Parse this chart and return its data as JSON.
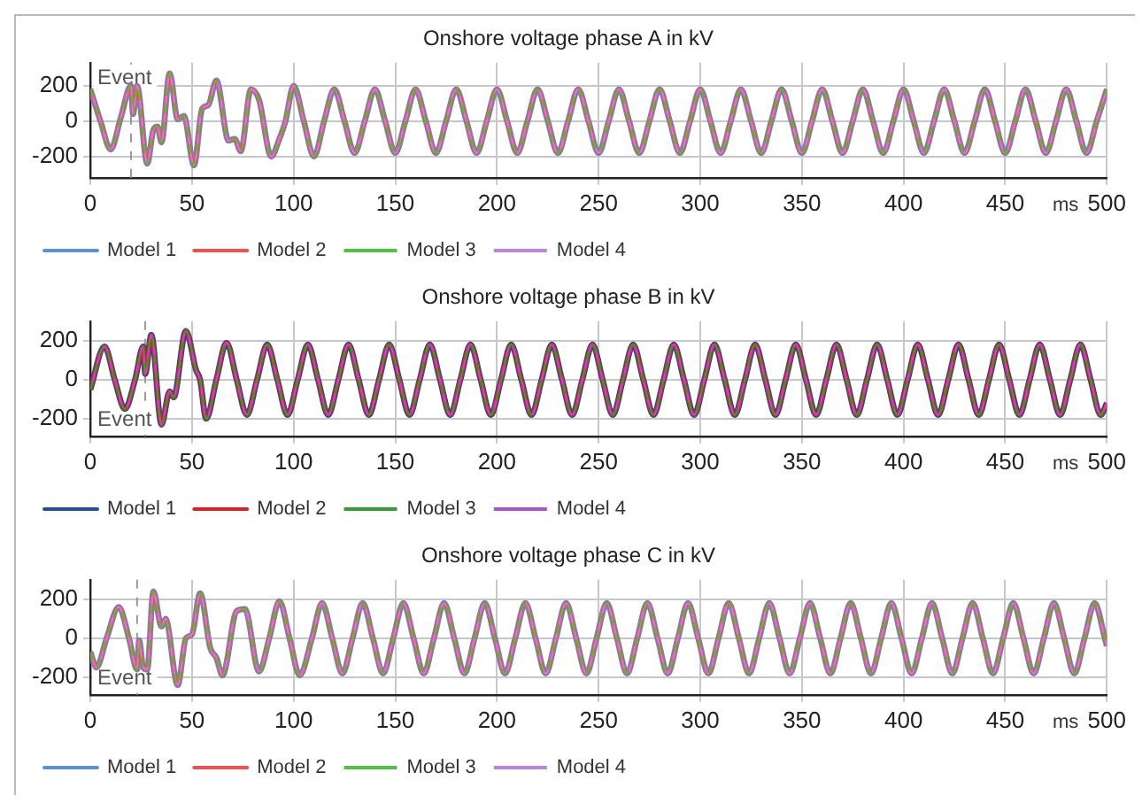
{
  "chart_data": [
    {
      "type": "line",
      "title": "Onshore voltage phase A in kV",
      "xlabel": "ms",
      "x": [
        0,
        5,
        10,
        15,
        20,
        21,
        23,
        28,
        31,
        33,
        35,
        39,
        43,
        46,
        51,
        55,
        58,
        62,
        68,
        71,
        74,
        79,
        83,
        89,
        93,
        96,
        100,
        105,
        110,
        115,
        120,
        125,
        130,
        135,
        140,
        145,
        150,
        155,
        160,
        165,
        170,
        175,
        180,
        185,
        190,
        195,
        200,
        205,
        210,
        215,
        220,
        225,
        230,
        235,
        240,
        245,
        250,
        255,
        260,
        265,
        270,
        275,
        280,
        285,
        290,
        295,
        300,
        305,
        310,
        315,
        320,
        325,
        330,
        335,
        340,
        345,
        350,
        355,
        360,
        365,
        370,
        375,
        380,
        385,
        390,
        395,
        400,
        405,
        410,
        415,
        420,
        425,
        430,
        435,
        440,
        445,
        450,
        455,
        460,
        465,
        470,
        475,
        480,
        485,
        490,
        495,
        500
      ],
      "series": [
        {
          "name": "Model 1",
          "color": "#5b8fd6",
          "line_style": "solid",
          "values": [
            180,
            0,
            -160,
            20,
            200,
            40,
            200,
            -240,
            -50,
            -30,
            -120,
            270,
            10,
            30,
            -250,
            70,
            90,
            230,
            -110,
            -100,
            -170,
            180,
            120,
            -200,
            -100,
            0,
            200,
            0,
            -200,
            0,
            180,
            0,
            -180,
            0,
            180,
            0,
            -180,
            0,
            180,
            0,
            -180,
            0,
            180,
            0,
            -180,
            0,
            180,
            0,
            -180,
            0,
            180,
            0,
            -180,
            0,
            180,
            0,
            -180,
            0,
            180,
            0,
            -180,
            0,
            180,
            0,
            -180,
            0,
            180,
            0,
            -180,
            0,
            180,
            0,
            -180,
            0,
            180,
            0,
            -180,
            0,
            180,
            0,
            -180,
            0,
            180,
            0,
            -180,
            0,
            180,
            0,
            -180,
            0,
            180,
            0,
            -180,
            0,
            180,
            0,
            -180,
            0,
            180,
            0,
            -180,
            0,
            180,
            0,
            -180,
            0,
            180
          ]
        },
        {
          "name": "Model 2",
          "color": "#f05050",
          "line_style": "solid",
          "values": [
            180,
            0,
            -160,
            20,
            200,
            40,
            200,
            -240,
            -50,
            -30,
            -120,
            270,
            10,
            30,
            -250,
            70,
            90,
            230,
            -110,
            -100,
            -170,
            180,
            120,
            -200,
            -100,
            0,
            200,
            0,
            -200,
            0,
            180,
            0,
            -180,
            0,
            180,
            0,
            -180,
            0,
            180,
            0,
            -180,
            0,
            180,
            0,
            -180,
            0,
            180,
            0,
            -180,
            0,
            180,
            0,
            -180,
            0,
            180,
            0,
            -180,
            0,
            180,
            0,
            -180,
            0,
            180,
            0,
            -180,
            0,
            180,
            0,
            -180,
            0,
            180,
            0,
            -180,
            0,
            180,
            0,
            -180,
            0,
            180,
            0,
            -180,
            0,
            180,
            0,
            -180,
            0,
            180,
            0,
            -180,
            0,
            180,
            0,
            -180,
            0,
            180,
            0,
            -180,
            0,
            180,
            0,
            -180,
            0,
            180,
            0,
            -180,
            0,
            180
          ]
        },
        {
          "name": "Model 3",
          "color": "#50c040",
          "line_style": "dashed",
          "values": [
            180,
            0,
            -160,
            20,
            200,
            40,
            200,
            -240,
            -50,
            -30,
            -120,
            270,
            10,
            30,
            -250,
            70,
            90,
            230,
            -110,
            -100,
            -170,
            180,
            120,
            -200,
            -100,
            0,
            200,
            0,
            -200,
            0,
            180,
            0,
            -180,
            0,
            180,
            0,
            -180,
            0,
            180,
            0,
            -180,
            0,
            180,
            0,
            -180,
            0,
            180,
            0,
            -180,
            0,
            180,
            0,
            -180,
            0,
            180,
            0,
            -180,
            0,
            180,
            0,
            -180,
            0,
            180,
            0,
            -180,
            0,
            180,
            0,
            -180,
            0,
            180,
            0,
            -180,
            0,
            180,
            0,
            -180,
            0,
            180,
            0,
            -180,
            0,
            180,
            0,
            -180,
            0,
            180,
            0,
            -180,
            0,
            180,
            0,
            -180,
            0,
            180,
            0,
            -180,
            0,
            180,
            0,
            -180,
            0,
            180,
            0,
            -180,
            0,
            180
          ]
        },
        {
          "name": "Model 4",
          "color": "#c080e0",
          "line_style": "dashed",
          "values": [
            180,
            0,
            -160,
            20,
            200,
            40,
            200,
            -240,
            -50,
            -30,
            -120,
            270,
            10,
            30,
            -250,
            70,
            90,
            230,
            -110,
            -100,
            -170,
            180,
            120,
            -200,
            -100,
            0,
            200,
            0,
            -200,
            0,
            180,
            0,
            -180,
            0,
            180,
            0,
            -180,
            0,
            180,
            0,
            -180,
            0,
            180,
            0,
            -180,
            0,
            180,
            0,
            -180,
            0,
            180,
            0,
            -180,
            0,
            180,
            0,
            -180,
            0,
            180,
            0,
            -180,
            0,
            180,
            0,
            -180,
            0,
            180,
            0,
            -180,
            0,
            180,
            0,
            -180,
            0,
            180,
            0,
            -180,
            0,
            180,
            0,
            -180,
            0,
            180,
            0,
            -180,
            0,
            180,
            0,
            -180,
            0,
            180,
            0,
            -180,
            0,
            180,
            0,
            -180,
            0,
            180,
            0,
            -180,
            0,
            180,
            0,
            -180,
            0,
            180
          ]
        }
      ],
      "xlim": [
        0,
        500
      ],
      "xticks": [
        0,
        50,
        100,
        150,
        200,
        250,
        300,
        350,
        400,
        450,
        500
      ],
      "ylim": [
        -320,
        330
      ],
      "yticks": [
        -200,
        0,
        200
      ],
      "ref_lines": [
        {
          "axis": "x",
          "value": 20,
          "label": "Event",
          "color": "#999999",
          "line_style": "dashed"
        }
      ],
      "grid": true,
      "legend": "bottom left",
      "marker": "none"
    },
    {
      "type": "line",
      "title": "Onshore voltage phase B in kV",
      "xlabel": "ms",
      "x": [
        0,
        7,
        12,
        17,
        22,
        26,
        27,
        30,
        35,
        39,
        41,
        47,
        52,
        54,
        57,
        62,
        67,
        72,
        77,
        82,
        87,
        92,
        97,
        102,
        107,
        112,
        117,
        122,
        127,
        132,
        137,
        142,
        147,
        152,
        157,
        162,
        167,
        172,
        177,
        182,
        187,
        192,
        197,
        202,
        207,
        212,
        217,
        222,
        227,
        232,
        237,
        242,
        247,
        252,
        257,
        262,
        267,
        272,
        277,
        282,
        287,
        292,
        297,
        302,
        307,
        312,
        317,
        322,
        327,
        332,
        337,
        342,
        347,
        352,
        357,
        362,
        367,
        372,
        377,
        382,
        387,
        392,
        397,
        402,
        407,
        412,
        417,
        422,
        427,
        432,
        437,
        442,
        447,
        452,
        457,
        462,
        467,
        472,
        477,
        482,
        487,
        492,
        497,
        500
      ],
      "series": [
        {
          "name": "Model 1",
          "color": "#1f4e9c",
          "line_style": "solid",
          "values": [
            -50,
            170,
            0,
            -150,
            0,
            170,
            30,
            230,
            -230,
            -60,
            -90,
            250,
            50,
            0,
            -200,
            0,
            190,
            0,
            -180,
            0,
            180,
            0,
            -180,
            0,
            180,
            0,
            -180,
            0,
            180,
            0,
            -180,
            0,
            180,
            0,
            -180,
            0,
            180,
            0,
            -180,
            0,
            180,
            0,
            -180,
            0,
            180,
            0,
            -180,
            0,
            180,
            0,
            -180,
            0,
            180,
            0,
            -180,
            0,
            180,
            0,
            -180,
            0,
            180,
            0,
            -180,
            0,
            180,
            0,
            -180,
            0,
            180,
            0,
            -180,
            0,
            180,
            0,
            -180,
            0,
            180,
            0,
            -180,
            0,
            180,
            0,
            -180,
            0,
            180,
            0,
            -180,
            0,
            180,
            0,
            -180,
            0,
            180,
            0,
            -180,
            0,
            180,
            0,
            -180,
            0,
            180,
            0,
            -180,
            -120
          ]
        },
        {
          "name": "Model 2",
          "color": "#e02020",
          "line_style": "solid",
          "values": [
            -50,
            170,
            0,
            -150,
            0,
            170,
            30,
            230,
            -230,
            -60,
            -90,
            250,
            50,
            0,
            -200,
            0,
            190,
            0,
            -180,
            0,
            180,
            0,
            -180,
            0,
            180,
            0,
            -180,
            0,
            180,
            0,
            -180,
            0,
            180,
            0,
            -180,
            0,
            180,
            0,
            -180,
            0,
            180,
            0,
            -180,
            0,
            180,
            0,
            -180,
            0,
            180,
            0,
            -180,
            0,
            180,
            0,
            -180,
            0,
            180,
            0,
            -180,
            0,
            180,
            0,
            -180,
            0,
            180,
            0,
            -180,
            0,
            180,
            0,
            -180,
            0,
            180,
            0,
            -180,
            0,
            180,
            0,
            -180,
            0,
            180,
            0,
            -180,
            0,
            180,
            0,
            -180,
            0,
            180,
            0,
            -180,
            0,
            180,
            0,
            -180,
            0,
            180,
            0,
            -180,
            0,
            180,
            0,
            -180,
            -120
          ]
        },
        {
          "name": "Model 3",
          "color": "#30a030",
          "line_style": "dashed",
          "values": [
            -50,
            170,
            0,
            -150,
            0,
            170,
            30,
            230,
            -230,
            -60,
            -90,
            250,
            50,
            0,
            -200,
            0,
            190,
            0,
            -180,
            0,
            180,
            0,
            -180,
            0,
            180,
            0,
            -180,
            0,
            180,
            0,
            -180,
            0,
            180,
            0,
            -180,
            0,
            180,
            0,
            -180,
            0,
            180,
            0,
            -180,
            0,
            180,
            0,
            -180,
            0,
            180,
            0,
            -180,
            0,
            180,
            0,
            -180,
            0,
            180,
            0,
            -180,
            0,
            180,
            0,
            -180,
            0,
            180,
            0,
            -180,
            0,
            180,
            0,
            -180,
            0,
            180,
            0,
            -180,
            0,
            180,
            0,
            -180,
            0,
            180,
            0,
            -180,
            0,
            180,
            0,
            -180,
            0,
            180,
            0,
            -180,
            0,
            180,
            0,
            -180,
            0,
            180,
            0,
            -180,
            0,
            180,
            0,
            -180,
            -120
          ]
        },
        {
          "name": "Model 4",
          "color": "#b050d0",
          "line_style": "dashed",
          "values": [
            -50,
            170,
            0,
            -150,
            0,
            170,
            30,
            230,
            -230,
            -60,
            -90,
            250,
            50,
            0,
            -200,
            0,
            190,
            0,
            -180,
            0,
            180,
            0,
            -180,
            0,
            180,
            0,
            -180,
            0,
            180,
            0,
            -180,
            0,
            180,
            0,
            -180,
            0,
            180,
            0,
            -180,
            0,
            180,
            0,
            -180,
            0,
            180,
            0,
            -180,
            0,
            180,
            0,
            -180,
            0,
            180,
            0,
            -180,
            0,
            180,
            0,
            -180,
            0,
            180,
            0,
            -180,
            0,
            180,
            0,
            -180,
            0,
            180,
            0,
            -180,
            0,
            180,
            0,
            -180,
            0,
            180,
            0,
            -180,
            0,
            180,
            0,
            -180,
            0,
            180,
            0,
            -180,
            0,
            180,
            0,
            -180,
            0,
            180,
            0,
            -180,
            0,
            180,
            0,
            -180,
            0,
            180,
            0,
            -180,
            -120
          ]
        }
      ],
      "xlim": [
        0,
        500
      ],
      "xticks": [
        0,
        50,
        100,
        150,
        200,
        250,
        300,
        350,
        400,
        450,
        500
      ],
      "ylim": [
        -290,
        300
      ],
      "yticks": [
        -200,
        0,
        200
      ],
      "ref_lines": [
        {
          "axis": "x",
          "value": 27,
          "label": "Event",
          "color": "#999999",
          "line_style": "dashed"
        }
      ],
      "grid": true,
      "legend": "bottom left",
      "marker": "none"
    },
    {
      "type": "line",
      "title": "Onshore voltage phase C in kV",
      "xlabel": "ms",
      "x": [
        0,
        3,
        8,
        14,
        19,
        23,
        24,
        26,
        28,
        31,
        35,
        37,
        43,
        47,
        50,
        54,
        59,
        62,
        65,
        72,
        76,
        83,
        88,
        93,
        98,
        103,
        109,
        114,
        119,
        124,
        129,
        134,
        139,
        144,
        149,
        154,
        159,
        164,
        169,
        174,
        179,
        184,
        189,
        194,
        199,
        204,
        209,
        214,
        219,
        224,
        229,
        234,
        239,
        244,
        249,
        254,
        259,
        264,
        269,
        274,
        279,
        284,
        289,
        294,
        299,
        304,
        309,
        314,
        319,
        324,
        329,
        334,
        339,
        344,
        349,
        354,
        359,
        364,
        369,
        374,
        379,
        384,
        389,
        394,
        399,
        404,
        409,
        414,
        419,
        424,
        429,
        434,
        439,
        444,
        449,
        454,
        459,
        464,
        469,
        474,
        479,
        484,
        489,
        494,
        499,
        500
      ],
      "series": [
        {
          "name": "Model 1",
          "color": "#5b8fd6",
          "line_style": "solid",
          "values": [
            -70,
            -150,
            0,
            160,
            0,
            -160,
            -10,
            -150,
            -160,
            240,
            60,
            100,
            -240,
            0,
            20,
            230,
            -50,
            -100,
            -190,
            140,
            150,
            -170,
            0,
            190,
            0,
            -190,
            0,
            180,
            0,
            -180,
            0,
            180,
            0,
            -180,
            0,
            180,
            0,
            -180,
            0,
            180,
            0,
            -180,
            0,
            180,
            0,
            -180,
            0,
            180,
            0,
            -180,
            0,
            180,
            0,
            -180,
            0,
            180,
            0,
            -180,
            0,
            180,
            0,
            -180,
            0,
            180,
            0,
            -180,
            0,
            180,
            0,
            -180,
            0,
            180,
            0,
            -180,
            0,
            180,
            0,
            -180,
            0,
            180,
            0,
            -180,
            0,
            180,
            0,
            -180,
            0,
            180,
            0,
            -180,
            0,
            180,
            0,
            -180,
            0,
            180,
            0,
            -180,
            0,
            180,
            0,
            -180,
            0,
            180,
            0,
            -40
          ]
        },
        {
          "name": "Model 2",
          "color": "#f05050",
          "line_style": "solid",
          "values": [
            -70,
            -150,
            0,
            160,
            0,
            -160,
            -10,
            -150,
            -160,
            240,
            60,
            100,
            -240,
            0,
            20,
            230,
            -50,
            -100,
            -190,
            140,
            150,
            -170,
            0,
            190,
            0,
            -190,
            0,
            180,
            0,
            -180,
            0,
            180,
            0,
            -180,
            0,
            180,
            0,
            -180,
            0,
            180,
            0,
            -180,
            0,
            180,
            0,
            -180,
            0,
            180,
            0,
            -180,
            0,
            180,
            0,
            -180,
            0,
            180,
            0,
            -180,
            0,
            180,
            0,
            -180,
            0,
            180,
            0,
            -180,
            0,
            180,
            0,
            -180,
            0,
            180,
            0,
            -180,
            0,
            180,
            0,
            -180,
            0,
            180,
            0,
            -180,
            0,
            180,
            0,
            -180,
            0,
            180,
            0,
            -180,
            0,
            180,
            0,
            -180,
            0,
            180,
            0,
            -180,
            0,
            180,
            0,
            -180,
            0,
            180,
            0,
            -40
          ]
        },
        {
          "name": "Model 3",
          "color": "#50c040",
          "line_style": "dashed",
          "values": [
            -70,
            -150,
            0,
            160,
            0,
            -160,
            -10,
            -150,
            -160,
            240,
            60,
            100,
            -240,
            0,
            20,
            230,
            -50,
            -100,
            -190,
            140,
            150,
            -170,
            0,
            190,
            0,
            -190,
            0,
            180,
            0,
            -180,
            0,
            180,
            0,
            -180,
            0,
            180,
            0,
            -180,
            0,
            180,
            0,
            -180,
            0,
            180,
            0,
            -180,
            0,
            180,
            0,
            -180,
            0,
            180,
            0,
            -180,
            0,
            180,
            0,
            -180,
            0,
            180,
            0,
            -180,
            0,
            180,
            0,
            -180,
            0,
            180,
            0,
            -180,
            0,
            180,
            0,
            -180,
            0,
            180,
            0,
            -180,
            0,
            180,
            0,
            -180,
            0,
            180,
            0,
            -180,
            0,
            180,
            0,
            -180,
            0,
            180,
            0,
            -180,
            0,
            180,
            0,
            -180,
            0,
            180,
            0,
            -180,
            0,
            180,
            0,
            -40
          ]
        },
        {
          "name": "Model 4",
          "color": "#c080e0",
          "line_style": "dashed",
          "values": [
            -70,
            -150,
            0,
            160,
            0,
            -160,
            -10,
            -150,
            -160,
            240,
            60,
            100,
            -240,
            0,
            20,
            230,
            -50,
            -100,
            -190,
            140,
            150,
            -170,
            0,
            190,
            0,
            -190,
            0,
            180,
            0,
            -180,
            0,
            180,
            0,
            -180,
            0,
            180,
            0,
            -180,
            0,
            180,
            0,
            -180,
            0,
            180,
            0,
            -180,
            0,
            180,
            0,
            -180,
            0,
            180,
            0,
            -180,
            0,
            180,
            0,
            -180,
            0,
            180,
            0,
            -180,
            0,
            180,
            0,
            -180,
            0,
            180,
            0,
            -180,
            0,
            180,
            0,
            -180,
            0,
            180,
            0,
            -180,
            0,
            180,
            0,
            -180,
            0,
            180,
            0,
            -180,
            0,
            180,
            0,
            -180,
            0,
            180,
            0,
            -180,
            0,
            180,
            0,
            -180,
            0,
            180,
            0,
            -180,
            0,
            180,
            0,
            -40
          ]
        }
      ],
      "xlim": [
        0,
        500
      ],
      "xticks": [
        0,
        50,
        100,
        150,
        200,
        250,
        300,
        350,
        400,
        450,
        500
      ],
      "ylim": [
        -290,
        300
      ],
      "yticks": [
        -200,
        0,
        200
      ],
      "ref_lines": [
        {
          "axis": "x",
          "value": 23,
          "label": "Event",
          "color": "#999999",
          "line_style": "dashed"
        }
      ],
      "grid": true,
      "legend": "bottom left",
      "marker": "none"
    }
  ]
}
